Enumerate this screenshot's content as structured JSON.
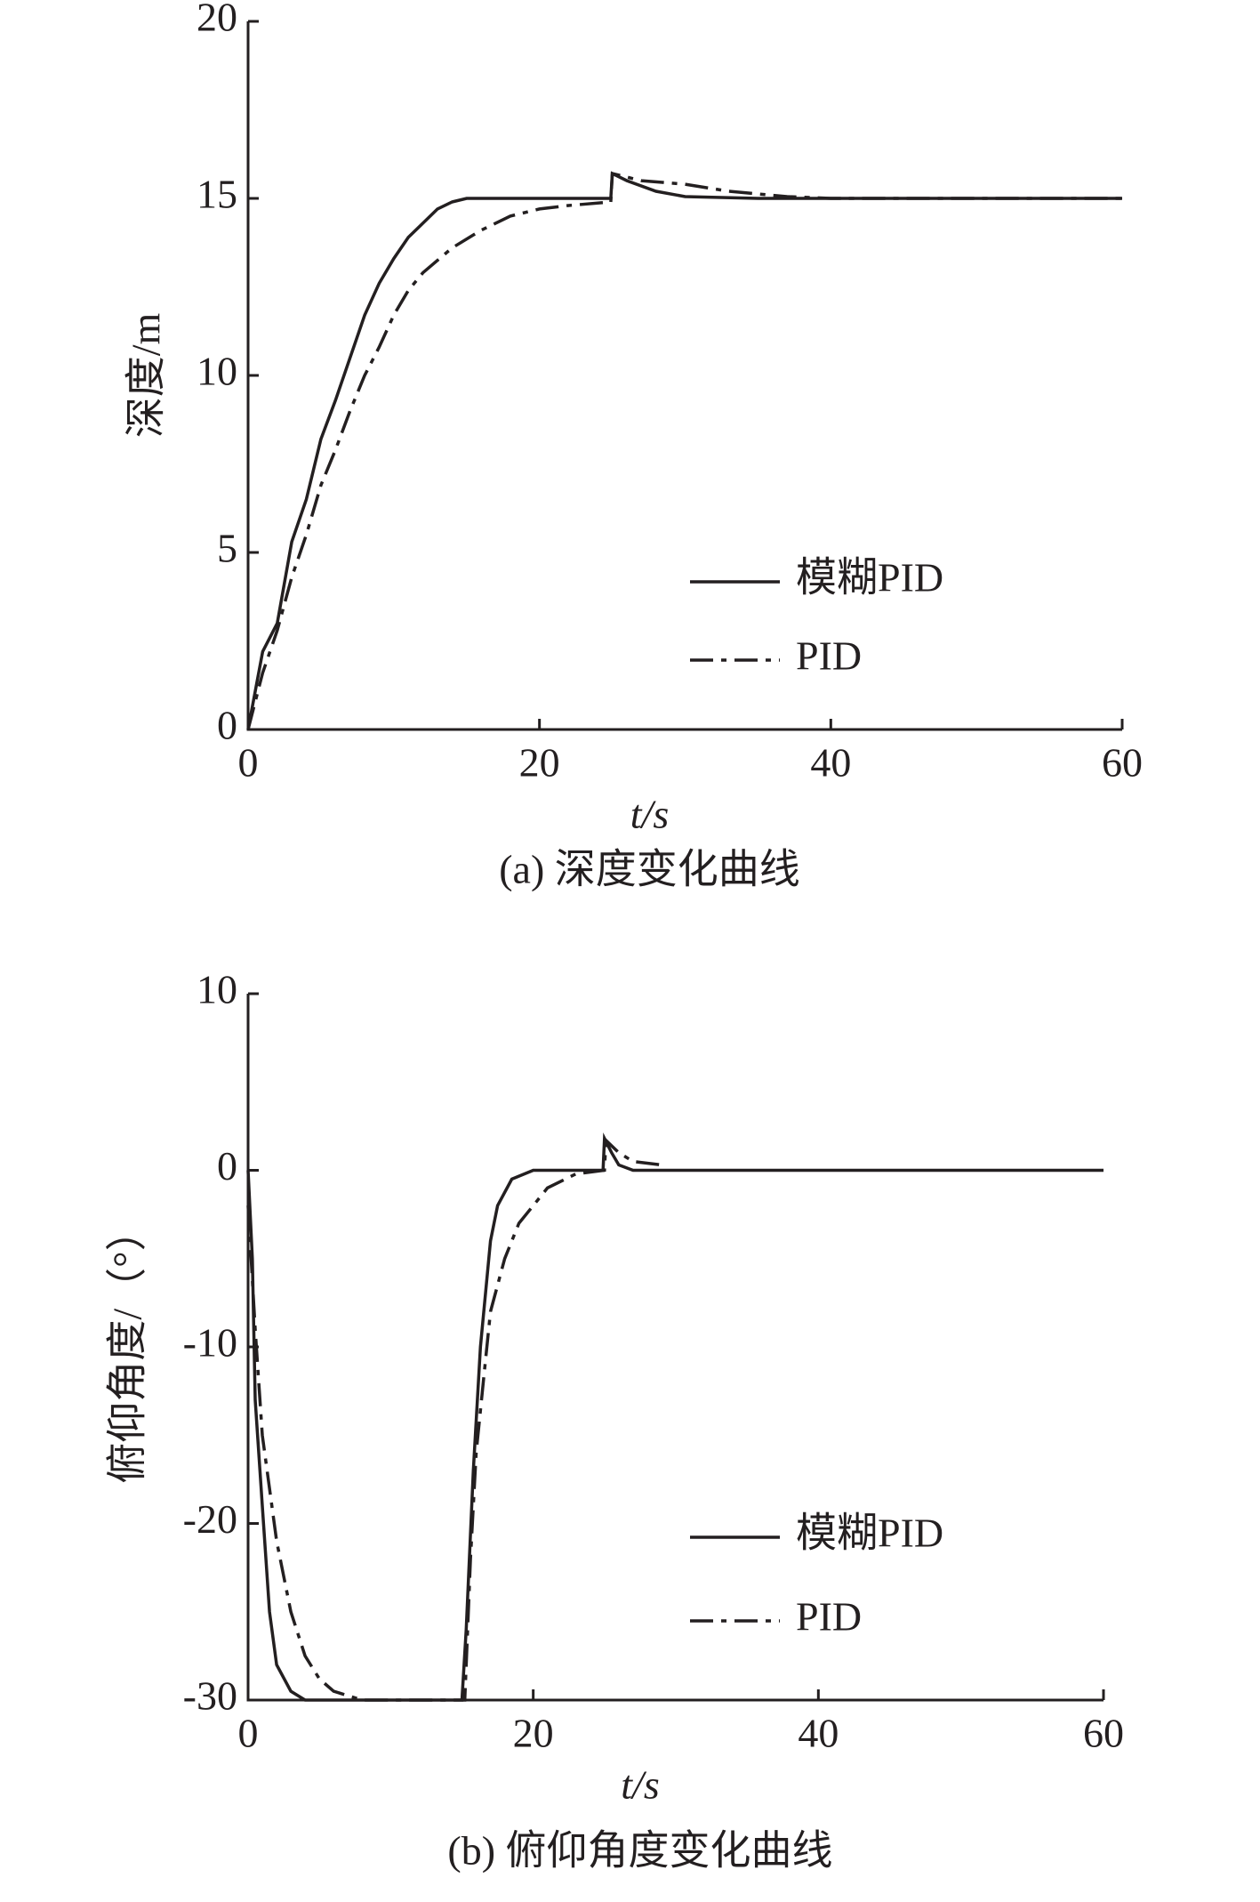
{
  "chart_data": [
    {
      "type": "line",
      "title": "(a) 深度变化曲线",
      "x_label": "t/s",
      "y_label": "深度/m",
      "xlim": [
        0,
        60
      ],
      "xticks": [
        0,
        20,
        40,
        60
      ],
      "ylim": [
        0,
        20
      ],
      "yticks": [
        0,
        5,
        10,
        15,
        20
      ],
      "legend": "lower-right",
      "series": [
        {
          "name": "模糊PID",
          "color": "#231f20",
          "linestyle": "solid",
          "x": [
            0,
            1,
            2,
            3,
            4,
            5,
            6,
            7,
            8,
            9,
            10,
            11,
            12,
            13,
            14,
            15,
            20,
            24.9,
            25,
            26,
            28,
            30,
            35,
            60
          ],
          "values": [
            0,
            2.2,
            3,
            5.3,
            6.5,
            8.2,
            9.3,
            10.5,
            11.7,
            12.6,
            13.3,
            13.9,
            14.3,
            14.7,
            14.9,
            15,
            15,
            15,
            15.7,
            15.5,
            15.2,
            15.05,
            15,
            15
          ]
        },
        {
          "name": "PID",
          "color": "#231f20",
          "linestyle": "dashdot",
          "x": [
            0,
            1,
            2,
            3,
            4,
            5,
            6,
            7,
            8,
            9,
            10,
            11,
            12,
            14,
            16,
            18,
            20,
            22,
            24.9,
            25,
            27,
            30,
            33,
            37,
            40,
            60
          ],
          "values": [
            0,
            1.6,
            2.8,
            4.3,
            5.5,
            6.9,
            7.9,
            9,
            10,
            10.8,
            11.7,
            12.4,
            12.9,
            13.6,
            14.1,
            14.5,
            14.7,
            14.8,
            14.9,
            15.7,
            15.5,
            15.4,
            15.2,
            15.05,
            15,
            15
          ]
        }
      ]
    },
    {
      "type": "line",
      "title": "(b) 俯仰角度变化曲线",
      "x_label": "t/s",
      "y_label": "俯仰角度/（°）",
      "xlim": [
        0,
        60
      ],
      "xticks": [
        0,
        20,
        40,
        60
      ],
      "ylim": [
        -30,
        10
      ],
      "yticks": [
        -30,
        -20,
        -10,
        0,
        10
      ],
      "legend": "lower-right",
      "series": [
        {
          "name": "模糊PID",
          "color": "#231f20",
          "linestyle": "solid",
          "x": [
            0,
            0.3,
            0.5,
            1,
            1.5,
            2,
            3,
            4,
            15,
            15.3,
            15.8,
            16.3,
            17,
            17.5,
            18.5,
            20,
            24.9,
            25,
            25.5,
            26,
            27,
            60
          ],
          "values": [
            0,
            -5,
            -13,
            -19,
            -25,
            -28,
            -29.5,
            -30,
            -30,
            -26,
            -17,
            -10,
            -4,
            -2,
            -0.5,
            0,
            0,
            1.8,
            1,
            0.3,
            0,
            0
          ]
        },
        {
          "name": "PID",
          "color": "#231f20",
          "linestyle": "dashdot",
          "x": [
            0,
            0.5,
            1,
            2,
            3,
            4,
            5,
            6,
            8,
            15.2,
            15.6,
            16,
            16.5,
            17,
            18,
            19,
            20,
            21,
            23,
            25,
            25.1,
            26,
            27,
            29
          ],
          "values": [
            -2,
            -9,
            -15,
            -21,
            -25,
            -27.5,
            -28.8,
            -29.5,
            -30,
            -30,
            -22,
            -16,
            -12,
            -8,
            -5,
            -3,
            -2,
            -1,
            -0.2,
            0,
            1.7,
            1,
            0.5,
            0.3
          ]
        }
      ]
    }
  ]
}
